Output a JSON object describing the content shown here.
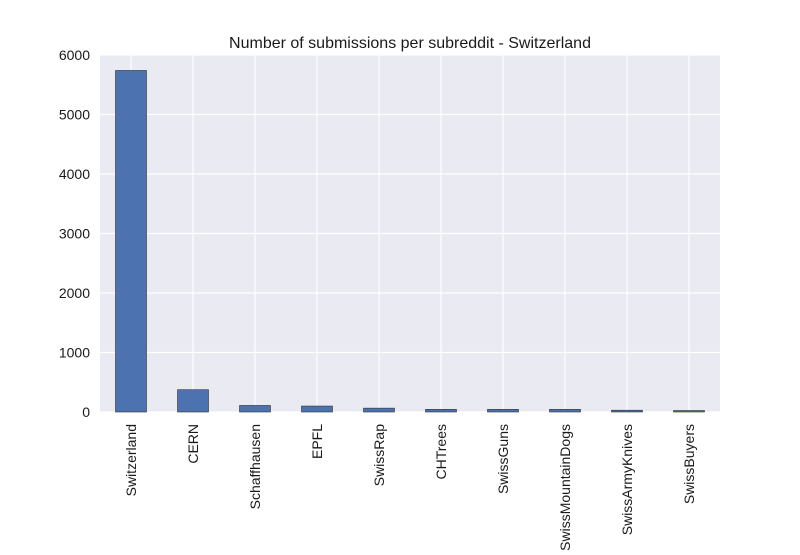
{
  "chart_data": {
    "type": "bar",
    "title": "Number of submissions per subreddit - Switzerland",
    "xlabel": "",
    "ylabel": "",
    "categories": [
      "Switzerland",
      "CERN",
      "Schaffhausen",
      "EPFL",
      "SwissRap",
      "CHTrees",
      "SwissGuns",
      "SwissMountainDogs",
      "SwissArmyKnives",
      "SwissBuyers"
    ],
    "values": [
      5740,
      375,
      110,
      100,
      65,
      45,
      45,
      45,
      30,
      25
    ],
    "ylim": [
      0,
      6000
    ],
    "yticks": [
      0,
      1000,
      2000,
      3000,
      4000,
      5000,
      6000
    ],
    "grid": true,
    "legend": "none",
    "colors": {
      "bar": "#4c72b0",
      "bar_edge": "#333333",
      "plot_background": "#eaeaf2",
      "grid": "#ffffff"
    }
  }
}
